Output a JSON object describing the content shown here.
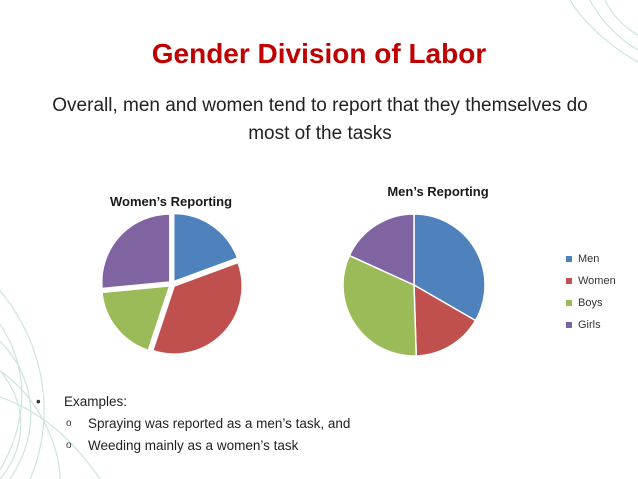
{
  "slide": {
    "title": "Gender Division of Labor",
    "subtitle": "Overall, men and women tend to report that they themselves do most of the tasks",
    "bullets": [
      {
        "text": "Examples:",
        "subitems": [
          "Spraying was reported as a men’s task, and",
          "Weeding mainly as a women’s task"
        ]
      }
    ]
  },
  "colors": {
    "title": "#c00000",
    "men": "#4f81bd",
    "women": "#c0504d",
    "boys": "#9bbb59",
    "girls": "#8064a2"
  },
  "icons": {
    "bullet": "•",
    "sub_bullet": "o"
  },
  "chart_data": [
    {
      "type": "pie",
      "title": "Women’s Reporting",
      "categories": [
        "Men",
        "Women",
        "Boys",
        "Girls"
      ],
      "values": [
        19,
        35,
        18,
        26
      ]
    },
    {
      "type": "pie",
      "title": "Men’s Reporting",
      "categories": [
        "Men",
        "Women",
        "Boys",
        "Girls"
      ],
      "values": [
        33,
        16,
        32,
        18
      ],
      "legend": {
        "placement": "right",
        "labels": [
          "Men",
          "Women",
          "Boys",
          "Girls"
        ]
      }
    }
  ]
}
